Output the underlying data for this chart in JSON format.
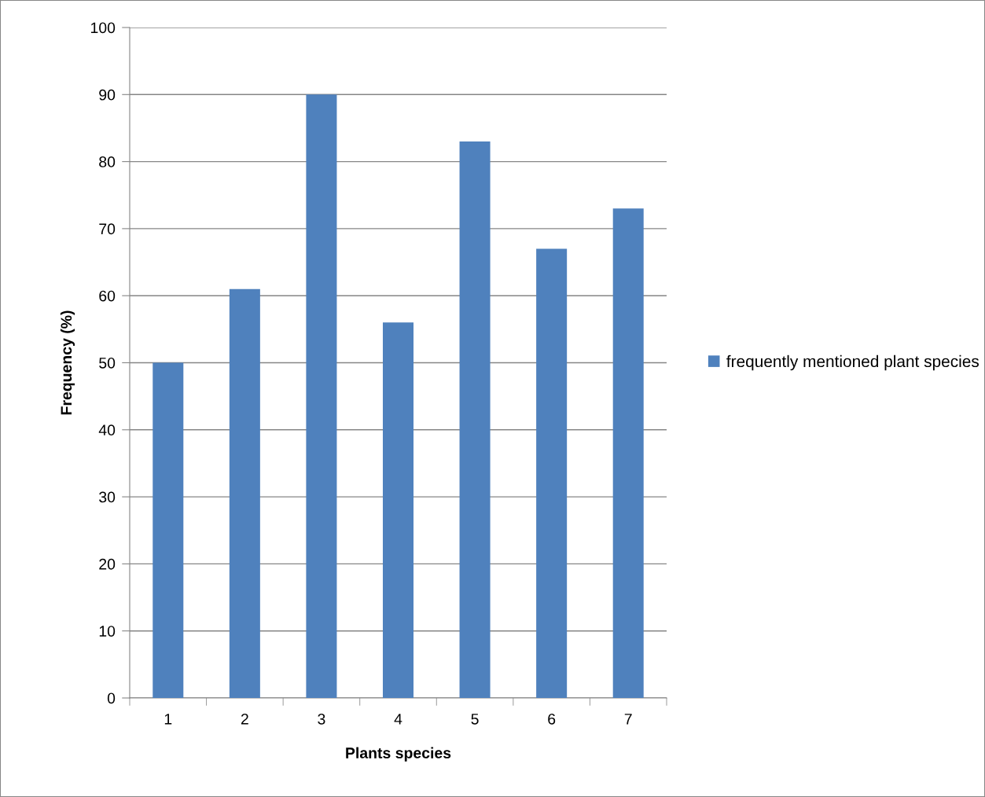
{
  "chart_data": {
    "type": "bar",
    "xlabel": "Plants species",
    "ylabel": "Frequency (%)",
    "categories": [
      "1",
      "2",
      "3",
      "4",
      "5",
      "6",
      "7"
    ],
    "series": [
      {
        "name": "frequently mentioned plant species",
        "color": "#4f81bd",
        "values": [
          50,
          61,
          90,
          56,
          83,
          67,
          73
        ]
      }
    ],
    "ylim": [
      0,
      100
    ],
    "yticks": [
      0,
      10,
      20,
      30,
      40,
      50,
      60,
      70,
      80,
      90,
      100
    ],
    "grid": "y",
    "legend": "right"
  }
}
